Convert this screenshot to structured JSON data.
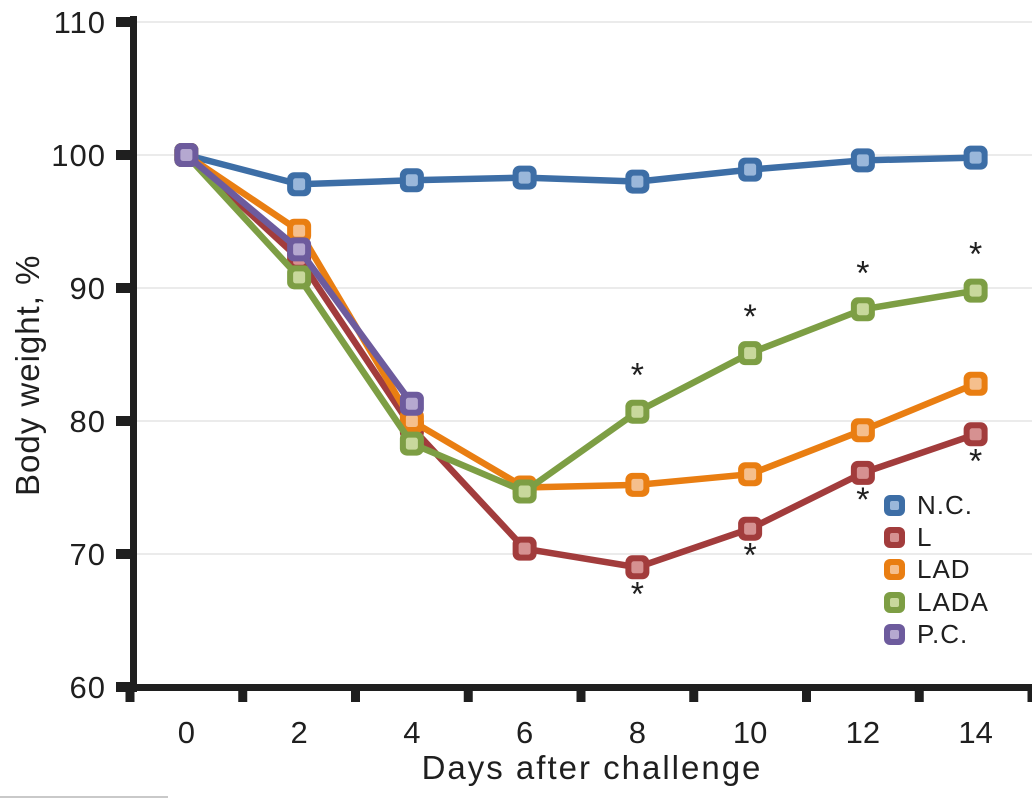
{
  "chart_data": {
    "type": "line",
    "title": "",
    "xlabel": "Days after challenge",
    "ylabel": "Body weight, %",
    "categories": [
      0,
      2,
      4,
      6,
      8,
      10,
      12,
      14
    ],
    "x_tick_labels": [
      "0",
      "2",
      "4",
      "6",
      "8",
      "10",
      "12",
      "14"
    ],
    "y_ticks": [
      110,
      100,
      90,
      80,
      70,
      60
    ],
    "y_tick_labels": [
      "110",
      "100",
      "90",
      "80",
      "70",
      "60"
    ],
    "ylim": [
      60,
      110
    ],
    "grid": true,
    "legend_position": "inside-right",
    "significance_symbol": "*",
    "axis_color": "#1f1f1f",
    "grid_color": "#ebebeb",
    "text_color": "#1f1f1f",
    "series": [
      {
        "name": "N.C.",
        "color": "#3d6ea6",
        "marker_fill": "#9ab7da",
        "values": [
          100,
          97.8,
          98.1,
          98.3,
          98.0,
          98.9,
          99.6,
          99.8
        ]
      },
      {
        "name": "L",
        "color": "#a23c3c",
        "marker_fill": "#d69191",
        "values": [
          100,
          92.2,
          79.5,
          70.4,
          69.0,
          71.9,
          76.1,
          79.0
        ],
        "significance": {
          "days": [
            8,
            10,
            12,
            14
          ],
          "placement": "below"
        }
      },
      {
        "name": "LAD",
        "color": "#e97e12",
        "marker_fill": "#f5bf8d",
        "values": [
          100,
          94.3,
          80.0,
          75.0,
          75.2,
          76.0,
          79.3,
          82.8
        ]
      },
      {
        "name": "LADA",
        "color": "#7d9e44",
        "marker_fill": "#c8d89c",
        "values": [
          100,
          90.8,
          78.3,
          74.7,
          80.7,
          85.1,
          88.4,
          89.8
        ],
        "significance": {
          "days": [
            8,
            10,
            12,
            14
          ],
          "placement": "above"
        }
      },
      {
        "name": "P.C.",
        "color": "#6d5b9d",
        "marker_fill": "#b5a8d0",
        "values": [
          100,
          92.9,
          81.3,
          null,
          null,
          null,
          null,
          null
        ]
      }
    ]
  }
}
